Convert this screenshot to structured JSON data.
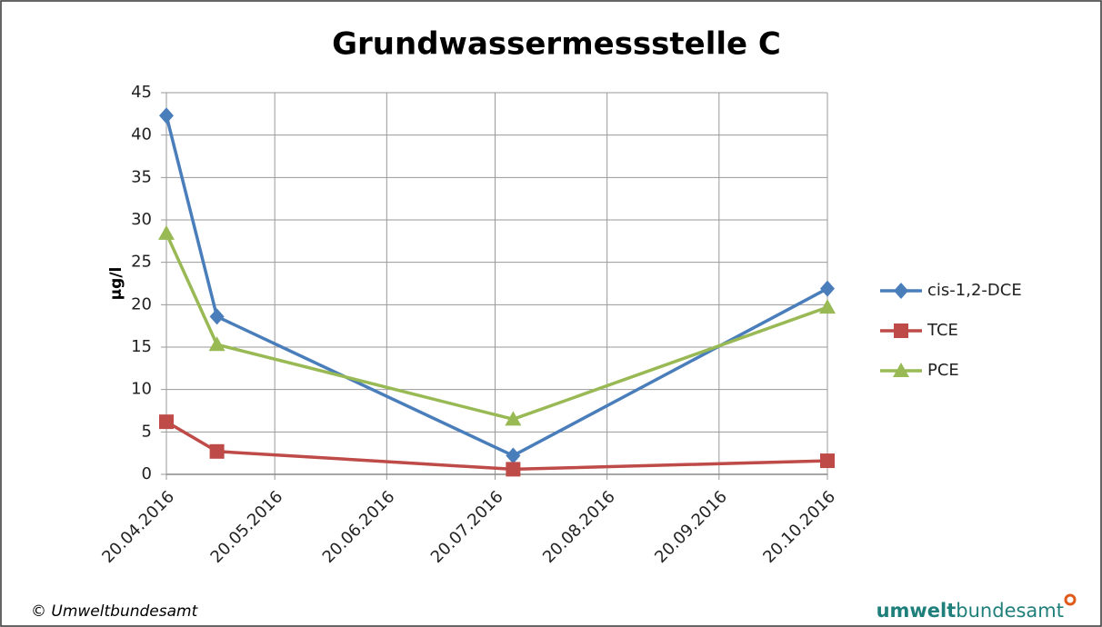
{
  "chart_data": {
    "type": "line",
    "title": "Grundwassermessstelle C",
    "y_label": "µg/l",
    "x": [
      "20.04.2016",
      "04.05.2016",
      "25.07.2016",
      "20.10.2016"
    ],
    "xlim": [
      "20.04.2016",
      "20.10.2016"
    ],
    "xticks": [
      "20.04.2016",
      "20.05.2016",
      "20.06.2016",
      "20.07.2016",
      "20.08.2016",
      "20.09.2016",
      "20.10.2016"
    ],
    "ylim": [
      0,
      45
    ],
    "yticks": [
      0,
      5,
      10,
      15,
      20,
      25,
      30,
      35,
      40,
      45
    ],
    "grid": true,
    "legend": "right",
    "series": [
      {
        "name": "cis-1,2-DCE",
        "color": "#4a7ebb",
        "marker": "diamond",
        "values": [
          42.3,
          18.6,
          2.2,
          21.9
        ]
      },
      {
        "name": "TCE",
        "color": "#be4b48",
        "marker": "square",
        "values": [
          6.2,
          2.7,
          0.6,
          1.6
        ]
      },
      {
        "name": "PCE",
        "color": "#98b954",
        "marker": "triangle",
        "values": [
          28.4,
          15.3,
          6.5,
          19.7
        ]
      }
    ]
  },
  "footer": {
    "copyright": "© Umweltbundesamt",
    "logo_bold": "umwelt",
    "logo_light": "bundesamt"
  }
}
